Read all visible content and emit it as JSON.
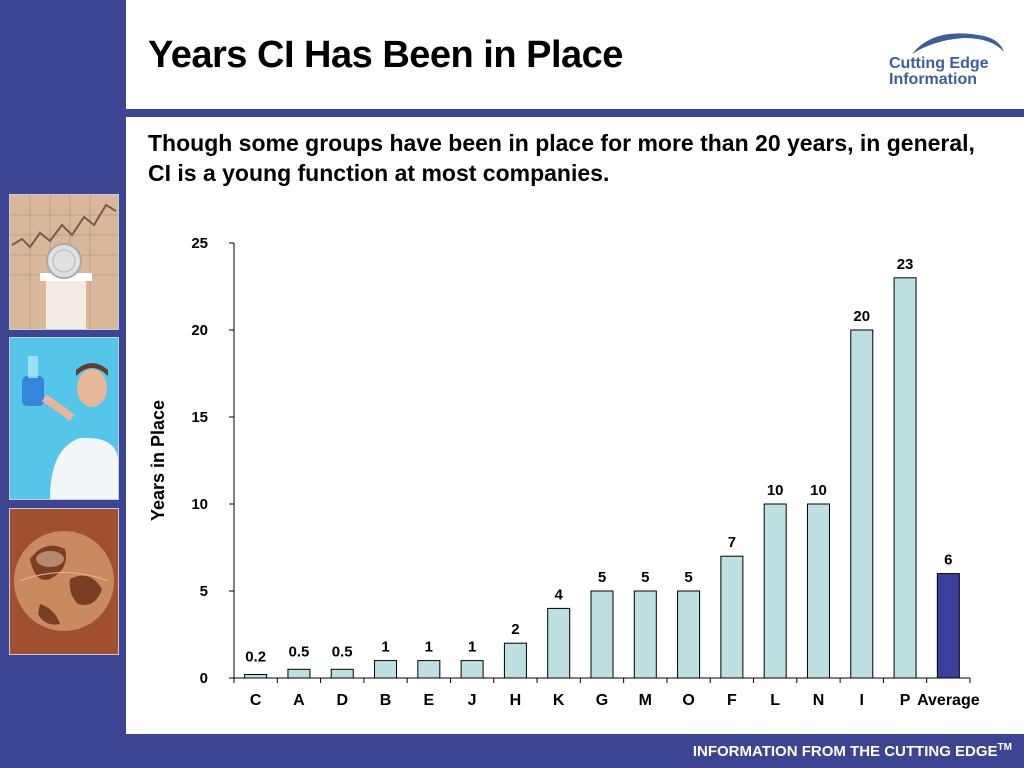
{
  "slide": {
    "title": "Years CI Has Been in Place",
    "subtitle": "Though some groups have been in place for more than 20 years, in general, CI is a young function at most companies.",
    "logo": {
      "line1": "Cutting Edge",
      "line2": "Information"
    },
    "footer": {
      "text": "INFORMATION FROM THE CUTTING EDGE",
      "superscript": "TM"
    }
  },
  "colors": {
    "brand_blue": "#3b4592",
    "bar_fill": "#bfe0e2",
    "average_fill": "#3a3f9e",
    "logo_text": "#3d5f98"
  },
  "sidebar_images": [
    "stock-chart-coin-photo",
    "scientist-flask-photo",
    "globe-photo"
  ],
  "chart_data": {
    "type": "bar",
    "title": "",
    "xlabel": "",
    "ylabel": "Years in Place",
    "ylim": [
      0,
      25
    ],
    "yticks": [
      0,
      5,
      10,
      15,
      20,
      25
    ],
    "grid": false,
    "legend": "none",
    "categories": [
      "C",
      "A",
      "D",
      "B",
      "E",
      "J",
      "H",
      "K",
      "G",
      "M",
      "O",
      "F",
      "L",
      "N",
      "I",
      "P",
      "Average"
    ],
    "values": [
      0.2,
      0.5,
      0.5,
      1,
      1,
      1,
      2,
      4,
      5,
      5,
      5,
      7,
      10,
      10,
      20,
      23,
      6
    ],
    "highlight": "Average"
  }
}
